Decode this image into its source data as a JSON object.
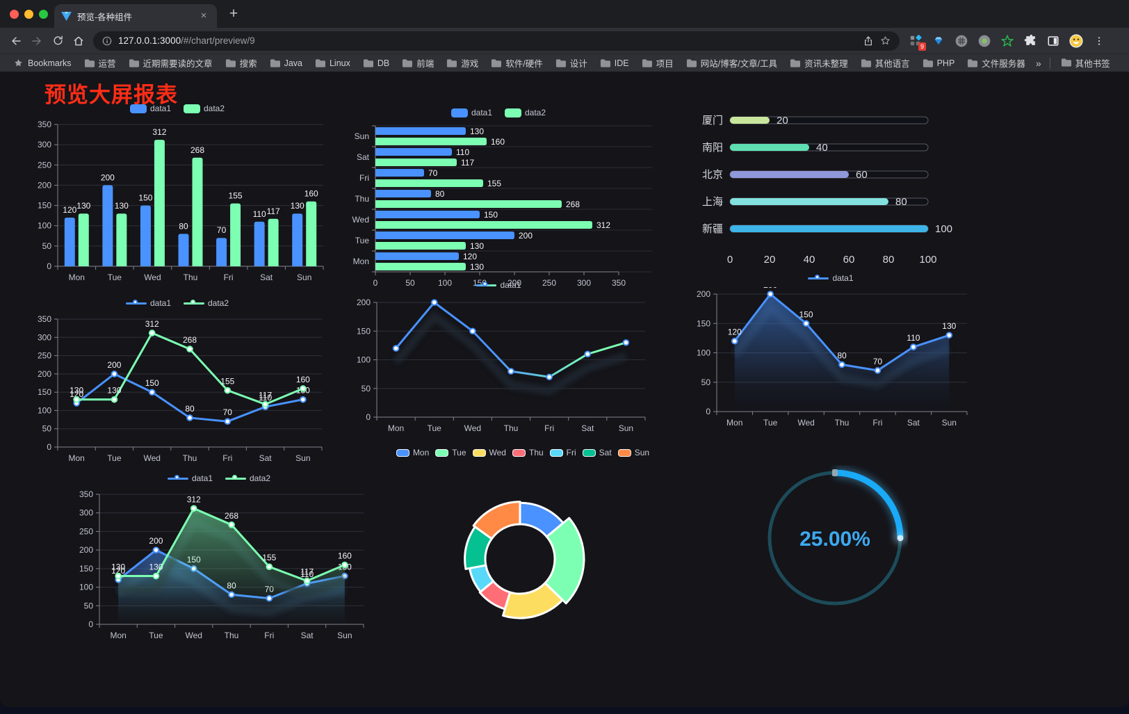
{
  "browser": {
    "tab_title": "预览-各种组件",
    "url_host": "127.0.0.1:3000",
    "url_path": "/#/chart/preview/9",
    "bookmarks_label": "Bookmarks",
    "bookmark_folders": [
      "运营",
      "近期需要读的文章",
      "搜索",
      "Java",
      "Linux",
      "DB",
      "前端",
      "游戏",
      "软件/硬件",
      "设计",
      "IDE",
      "项目",
      "网站/博客/文章/工具",
      "资讯未整理",
      "其他语言",
      "PHP",
      "文件服务器"
    ],
    "overflow_chevron": "»",
    "other_bookmarks": "其他书签",
    "extension_badge": "9",
    "new_tab_label": "+",
    "close_tab_label": "×"
  },
  "page": {
    "title": "预览大屏报表",
    "title_color": "#ff2d16"
  },
  "chart_data": [
    {
      "id": "bar-grouped",
      "type": "bar",
      "categories": [
        "Mon",
        "Tue",
        "Wed",
        "Thu",
        "Fri",
        "Sat",
        "Sun"
      ],
      "series": [
        {
          "name": "data1",
          "color": "#4992ff",
          "values": [
            120,
            200,
            150,
            80,
            70,
            110,
            130
          ]
        },
        {
          "name": "data2",
          "color": "#7cffb2",
          "values": [
            130,
            130,
            312,
            268,
            155,
            117,
            160
          ]
        }
      ],
      "ylim": [
        0,
        350
      ],
      "ytick": 50,
      "value_labels": true,
      "legend": "rect",
      "grid": true
    },
    {
      "id": "bar-horizontal",
      "type": "bar-horizontal",
      "categories": [
        "Mon",
        "Tue",
        "Wed",
        "Thu",
        "Fri",
        "Sat",
        "Sun"
      ],
      "series": [
        {
          "name": "data1",
          "color": "#4992ff",
          "values": [
            120,
            200,
            150,
            80,
            70,
            110,
            130
          ]
        },
        {
          "name": "data2",
          "color": "#7cffb2",
          "values": [
            130,
            130,
            312,
            268,
            155,
            117,
            160
          ]
        }
      ],
      "xlim": [
        0,
        350
      ],
      "xtick": 50,
      "value_labels": true,
      "legend": "rect"
    },
    {
      "id": "progress-list",
      "type": "progress",
      "items": [
        {
          "label": "厦门",
          "value": 20,
          "color": "#c9e79c"
        },
        {
          "label": "南阳",
          "value": 40,
          "color": "#5fdfb1"
        },
        {
          "label": "北京",
          "value": 60,
          "color": "#9098dc"
        },
        {
          "label": "上海",
          "value": 80,
          "color": "#82e1df"
        },
        {
          "label": "新疆",
          "value": 100,
          "color": "#3db5e8"
        }
      ],
      "xlim": [
        0,
        100
      ],
      "xticks": [
        0,
        20,
        40,
        60,
        80,
        100
      ]
    },
    {
      "id": "line-two",
      "type": "line",
      "categories": [
        "Mon",
        "Tue",
        "Wed",
        "Thu",
        "Fri",
        "Sat",
        "Sun"
      ],
      "series": [
        {
          "name": "data1",
          "color": "#4992ff",
          "values": [
            120,
            200,
            150,
            80,
            70,
            110,
            130
          ]
        },
        {
          "name": "data2",
          "color": "#7cffb2",
          "values": [
            130,
            130,
            312,
            268,
            155,
            117,
            160
          ]
        }
      ],
      "ylim": [
        0,
        350
      ],
      "ytick": 50,
      "value_labels": true,
      "legend": "line"
    },
    {
      "id": "line-gradient",
      "type": "line",
      "categories": [
        "Mon",
        "Tue",
        "Wed",
        "Thu",
        "Fri",
        "Sat",
        "Sun"
      ],
      "series": [
        {
          "name": "data1",
          "color": "#4992ff",
          "color_end": "#7cffb2",
          "values": [
            120,
            200,
            150,
            80,
            70,
            110,
            130
          ]
        }
      ],
      "ylim": [
        0,
        200
      ],
      "ytick": 50,
      "value_labels": false,
      "shadow": true,
      "legend": "line"
    },
    {
      "id": "area-one",
      "type": "line",
      "categories": [
        "Mon",
        "Tue",
        "Wed",
        "Thu",
        "Fri",
        "Sat",
        "Sun"
      ],
      "series": [
        {
          "name": "data1",
          "color": "#4992ff",
          "area": true,
          "values": [
            120,
            200,
            150,
            80,
            70,
            110,
            130
          ]
        }
      ],
      "ylim": [
        0,
        200
      ],
      "ytick": 50,
      "value_labels": true,
      "shadow": true,
      "legend": "line"
    },
    {
      "id": "area-two",
      "type": "line",
      "categories": [
        "Mon",
        "Tue",
        "Wed",
        "Thu",
        "Fri",
        "Sat",
        "Sun"
      ],
      "series": [
        {
          "name": "data1",
          "color": "#4992ff",
          "area": true,
          "values": [
            120,
            200,
            150,
            80,
            70,
            110,
            130
          ]
        },
        {
          "name": "data2",
          "color": "#7cffb2",
          "area": true,
          "values": [
            130,
            130,
            312,
            268,
            155,
            117,
            160
          ]
        }
      ],
      "ylim": [
        0,
        350
      ],
      "ytick": 50,
      "value_labels": true,
      "shadow": true,
      "legend": "line"
    },
    {
      "id": "pie-rose",
      "type": "pie",
      "rose": true,
      "legend": "rect",
      "items": [
        {
          "label": "Mon",
          "value": 120,
          "color": "#4992ff"
        },
        {
          "label": "Tue",
          "value": 200,
          "color": "#7cffb2"
        },
        {
          "label": "Wed",
          "value": 150,
          "color": "#fddd60"
        },
        {
          "label": "Thu",
          "value": 80,
          "color": "#ff6e76"
        },
        {
          "label": "Fri",
          "value": 70,
          "color": "#58d9f9"
        },
        {
          "label": "Sat",
          "value": 110,
          "color": "#05c091"
        },
        {
          "label": "Sun",
          "value": 130,
          "color": "#ff8a45"
        }
      ]
    },
    {
      "id": "gauge-percent",
      "type": "gauge",
      "label": "25.00%",
      "percent": 25,
      "color": "#19aaf8",
      "track_color": "#1d4b59",
      "text_color": "#3da9f0"
    }
  ]
}
